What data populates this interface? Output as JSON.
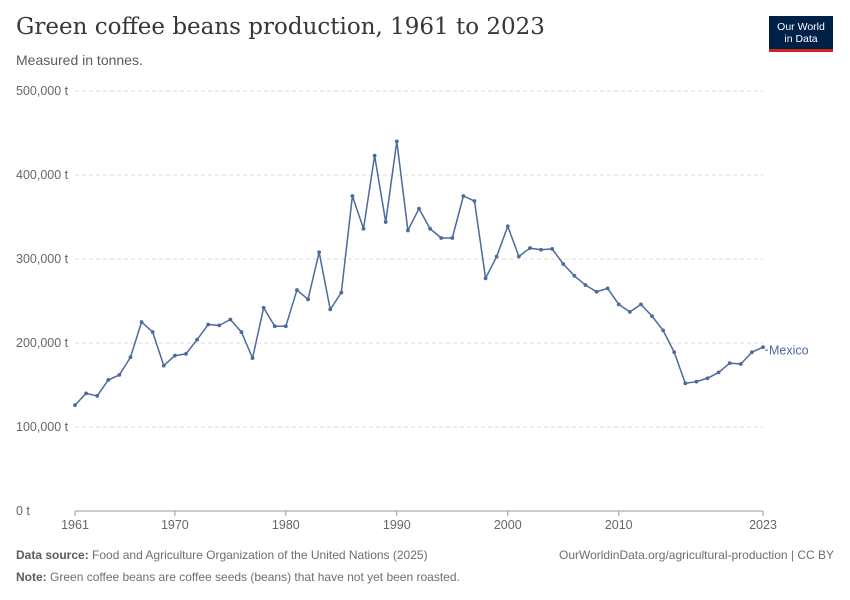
{
  "header": {
    "title": "Green coffee beans production, 1961 to 2023",
    "subtitle": "Measured in tonnes.",
    "logo_line1": "Our World",
    "logo_line2": "in Data"
  },
  "footer": {
    "source_label": "Data source:",
    "source_text": "Food and Agriculture Organization of the United Nations (2025)",
    "url_text": "OurWorldinData.org/agricultural-production | CC BY",
    "note_label": "Note:",
    "note_text": "Green coffee beans are coffee seeds (beans) that have not yet been roasted."
  },
  "colors": {
    "series": "#4c6a9c",
    "grid": "#dddddd",
    "axis_text": "#666666",
    "logo_bg": "#002147",
    "logo_accent": "#ce261e"
  },
  "chart_data": {
    "type": "line",
    "title": "Green coffee beans production, 1961 to 2023",
    "subtitle": "Measured in tonnes.",
    "xlabel": "",
    "ylabel": "",
    "xlim": [
      1961,
      2023
    ],
    "ylim": [
      0,
      500000
    ],
    "grid": true,
    "x_ticks": [
      "1961",
      "1970",
      "1980",
      "1990",
      "2000",
      "2010",
      "2023"
    ],
    "y_ticks": [
      "0 t",
      "100,000 t",
      "200,000 t",
      "300,000 t",
      "400,000 t",
      "500,000 t"
    ],
    "series": [
      {
        "name": "Mexico",
        "x": [
          1961,
          1962,
          1963,
          1964,
          1965,
          1966,
          1967,
          1968,
          1969,
          1970,
          1971,
          1972,
          1973,
          1974,
          1975,
          1976,
          1977,
          1978,
          1979,
          1980,
          1981,
          1982,
          1983,
          1984,
          1985,
          1986,
          1987,
          1988,
          1989,
          1990,
          1991,
          1992,
          1993,
          1994,
          1995,
          1996,
          1997,
          1998,
          1999,
          2000,
          2001,
          2002,
          2003,
          2004,
          2005,
          2006,
          2007,
          2008,
          2009,
          2010,
          2011,
          2012,
          2013,
          2014,
          2015,
          2016,
          2017,
          2018,
          2019,
          2020,
          2021,
          2022,
          2023
        ],
        "values": [
          126000,
          140000,
          137000,
          156000,
          162000,
          183000,
          225000,
          213000,
          173000,
          185000,
          187000,
          204000,
          222000,
          221000,
          228000,
          213000,
          182000,
          242000,
          220000,
          220000,
          263000,
          252000,
          308000,
          240000,
          260000,
          375000,
          336000,
          423000,
          344000,
          440000,
          334000,
          360000,
          336000,
          325000,
          325000,
          375000,
          369000,
          277000,
          303000,
          339000,
          303000,
          313000,
          311000,
          312000,
          294000,
          280000,
          269000,
          261000,
          265000,
          246000,
          237000,
          246000,
          232000,
          215000,
          189000,
          152000,
          154000,
          158000,
          165000,
          176000,
          175000,
          189000,
          195000
        ]
      }
    ]
  }
}
